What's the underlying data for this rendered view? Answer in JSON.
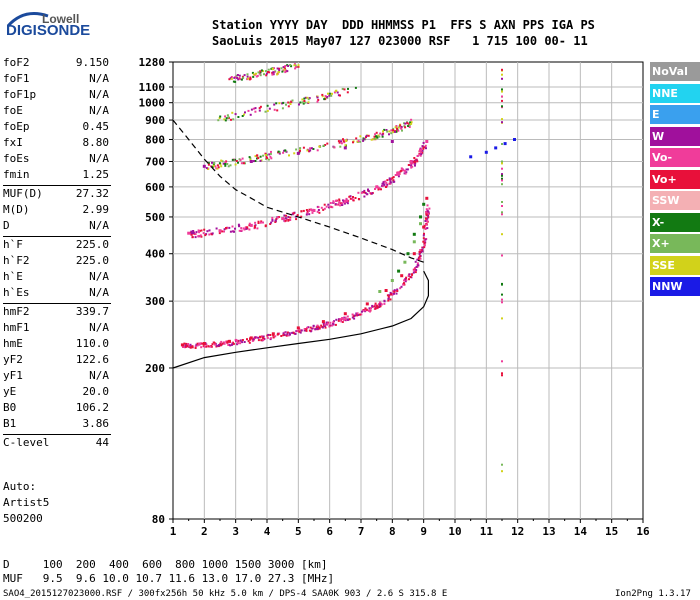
{
  "logo": {
    "line1": "Lowell",
    "line2": "DIGISONDE"
  },
  "header": {
    "line1": "Station YYYY DAY  DDD HHMMSS P1  FFS S AXN PPS IGA PS",
    "line2": "SaoLuis 2015 May07 127 023000 RSF   1 715 100 00- 11"
  },
  "params": [
    {
      "name": "foF2",
      "value": "9.150"
    },
    {
      "name": "foF1",
      "value": "N/A"
    },
    {
      "name": "foF1p",
      "value": "N/A"
    },
    {
      "name": "foE",
      "value": "N/A"
    },
    {
      "name": "foEp",
      "value": "0.45"
    },
    {
      "name": "fxI",
      "value": "8.80"
    },
    {
      "name": "foEs",
      "value": "N/A"
    },
    {
      "name": "fmin",
      "value": "1.25"
    },
    {
      "name": "MUF(D)",
      "value": "27.32"
    },
    {
      "name": "M(D)",
      "value": "2.99"
    },
    {
      "name": "D",
      "value": "N/A"
    },
    {
      "name": "h`F",
      "value": "225.0"
    },
    {
      "name": "h`F2",
      "value": "225.0"
    },
    {
      "name": "h`E",
      "value": "N/A"
    },
    {
      "name": "h`Es",
      "value": "N/A"
    },
    {
      "name": "hmF2",
      "value": "339.7"
    },
    {
      "name": "hmF1",
      "value": "N/A"
    },
    {
      "name": "hmE",
      "value": "110.0"
    },
    {
      "name": "yF2",
      "value": "122.6"
    },
    {
      "name": "yF1",
      "value": "N/A"
    },
    {
      "name": "yE",
      "value": "20.0"
    },
    {
      "name": "B0",
      "value": "106.2"
    },
    {
      "name": "B1",
      "value": "3.86"
    },
    {
      "name": "C-level",
      "value": "44"
    }
  ],
  "auto": {
    "line1": "Auto:",
    "line2": "Artist5",
    "line3": "500200"
  },
  "legend": [
    {
      "label": "NoVal",
      "color": "#9a9a9a"
    },
    {
      "label": "NNE",
      "color": "#22d3f0"
    },
    {
      "label": "E",
      "color": "#3aa0ee"
    },
    {
      "label": "W",
      "color": "#a0109c"
    },
    {
      "label": "Vo-",
      "color": "#f03c9a"
    },
    {
      "label": "Vo+",
      "color": "#e8103a"
    },
    {
      "label": "SSW",
      "color": "#f4b0b4"
    },
    {
      "label": "X-",
      "color": "#127a12"
    },
    {
      "label": "X+",
      "color": "#78b85a"
    },
    {
      "label": "SSE",
      "color": "#d2d21a"
    },
    {
      "label": "NNW",
      "color": "#1a1ae6"
    }
  ],
  "footer": {
    "d_line": "D     100  200  400  600  800 1000 1500 3000 [km]",
    "muf_line": "MUF   9.5  9.6 10.0 10.7 11.6 13.0 17.0 27.3 [MHz]",
    "file_line": "SAO4_2015127023000.RSF / 300fx256h 50 kHz 5.0 km / DPS-4 SAA0K 903 / 2.6 S 315.8 E",
    "version": "Ion2Png 1.3.17"
  },
  "chart_data": {
    "type": "scatter",
    "title": "",
    "xlabel": "",
    "ylabel": "",
    "xlim": [
      1,
      16
    ],
    "ylim": [
      80,
      1280
    ],
    "y_scale": "log",
    "x_ticks": [
      1,
      2,
      3,
      4,
      5,
      6,
      7,
      8,
      9,
      10,
      11,
      12,
      13,
      14,
      15,
      16
    ],
    "y_ticks": [
      80,
      200,
      300,
      400,
      500,
      600,
      700,
      800,
      900,
      1000,
      1100,
      1280
    ],
    "grid": true,
    "series": [
      {
        "name": "Vo+",
        "color": "#e8103a",
        "x": [
          1.3,
          2.0,
          2.8,
          3.5,
          4.2,
          5.0,
          5.8,
          6.5,
          7.2,
          7.8,
          8.3,
          8.7,
          9.0,
          9.1
        ],
        "y": [
          230,
          232,
          235,
          240,
          246,
          255,
          265,
          278,
          295,
          320,
          350,
          400,
          470,
          560
        ]
      },
      {
        "name": "Vo-",
        "color": "#f03c9a",
        "x": [
          1.5,
          2.5,
          3.5,
          4.5,
          5.5,
          6.5,
          7.5,
          8.2,
          8.6,
          8.9,
          9.1
        ],
        "y": [
          453,
          460,
          475,
          495,
          520,
          550,
          600,
          650,
          700,
          750,
          790
        ]
      },
      {
        "name": "X-",
        "color": "#127a12",
        "x": [
          8.2,
          8.5,
          8.7,
          8.9,
          9.0
        ],
        "y": [
          360,
          400,
          450,
          500,
          540
        ]
      },
      {
        "name": "X+",
        "color": "#78b85a",
        "x": [
          7.6,
          8.0,
          8.4,
          8.7,
          8.9
        ],
        "y": [
          318,
          340,
          380,
          430,
          480
        ]
      },
      {
        "name": "W",
        "color": "#a0109c",
        "x": [
          2.0,
          3.5,
          5.0,
          6.5,
          8.0
        ],
        "y": [
          680,
          700,
          735,
          760,
          790
        ]
      },
      {
        "name": "NNW",
        "color": "#1a1ae6",
        "x": [
          10.5,
          11.0,
          11.3,
          11.6,
          11.9
        ],
        "y": [
          720,
          740,
          760,
          780,
          800
        ]
      }
    ],
    "curves": [
      {
        "name": "profile",
        "style": "solid",
        "x": [
          1.0,
          2.0,
          3.0,
          4.0,
          5.0,
          6.0,
          7.0,
          8.0,
          8.6,
          9.0,
          9.15,
          9.15,
          9.0
        ],
        "y": [
          200,
          213,
          220,
          226,
          232,
          238,
          246,
          258,
          270,
          290,
          310,
          340,
          360
        ]
      },
      {
        "name": "MUF",
        "style": "dashed",
        "x": [
          1.0,
          1.5,
          2.0,
          2.5,
          3.0,
          3.5,
          4.0,
          5.0,
          6.0,
          7.0,
          8.0,
          8.6,
          9.0
        ],
        "y": [
          900,
          800,
          710,
          640,
          590,
          560,
          530,
          500,
          470,
          440,
          410,
          390,
          380
        ]
      }
    ],
    "echo_traces": [
      {
        "x": [
          1.3,
          2.0,
          2.8,
          3.6,
          4.4,
          5.2,
          6.0,
          6.8,
          7.6,
          8.2,
          8.7,
          9.0,
          9.12
        ],
        "y": [
          230,
          231,
          234,
          239,
          245,
          253,
          263,
          276,
          296,
          325,
          365,
          430,
          540
        ]
      },
      {
        "x": [
          1.5,
          2.2,
          3.0,
          3.8,
          4.6,
          5.4,
          6.2,
          7.0,
          7.6,
          8.1,
          8.5,
          8.8,
          9.05
        ],
        "y": [
          453,
          458,
          468,
          482,
          500,
          520,
          545,
          575,
          605,
          640,
          680,
          720,
          790
        ]
      },
      {
        "x": [
          2.0,
          2.8,
          3.6,
          4.4,
          5.2,
          6.0,
          6.8,
          7.4,
          7.9,
          8.3,
          8.6
        ],
        "y": [
          680,
          700,
          718,
          737,
          757,
          778,
          800,
          820,
          845,
          870,
          895
        ]
      },
      {
        "x": [
          2.4,
          3.2,
          4.0,
          4.8,
          5.6,
          6.2,
          6.8
        ],
        "y": [
          910,
          940,
          970,
          1000,
          1035,
          1065,
          1100
        ]
      },
      {
        "x": [
          2.8,
          3.6,
          4.4,
          5.0
        ],
        "y": [
          1160,
          1190,
          1225,
          1265
        ]
      }
    ]
  }
}
